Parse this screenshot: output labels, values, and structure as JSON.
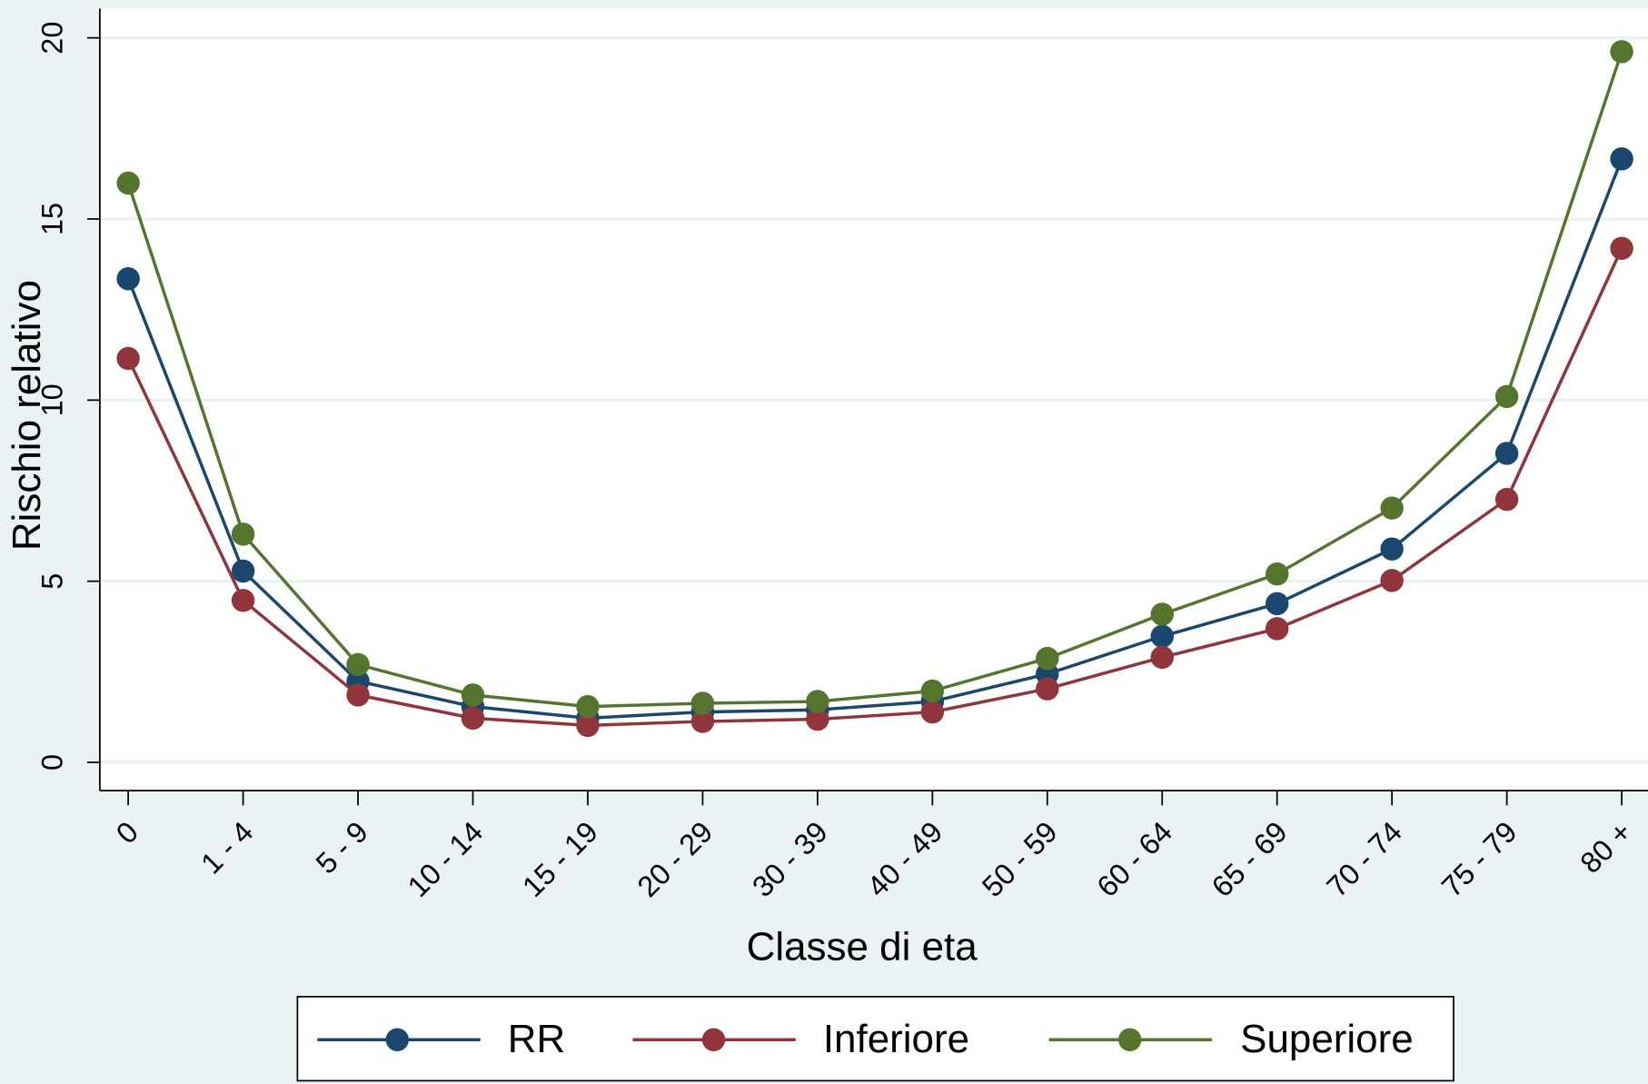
{
  "chart_data": {
    "type": "line",
    "x_label": "Classe di eta",
    "y_label": "Rischio relativo",
    "categories": [
      "0",
      "1 - 4",
      "5 - 9",
      "10 - 14",
      "15 - 19",
      "20 - 29",
      "30 - 39",
      "40 - 49",
      "50 - 59",
      "60 - 64",
      "65 - 69",
      "70 - 74",
      "75 - 79",
      "80 +"
    ],
    "series": [
      {
        "name": "RR",
        "color": "#1a476f",
        "values": [
          13.35,
          5.28,
          2.24,
          1.54,
          1.22,
          1.39,
          1.45,
          1.68,
          2.44,
          3.48,
          4.38,
          5.89,
          8.53,
          16.66
        ]
      },
      {
        "name": "Inferiore",
        "color": "#90353b",
        "values": [
          11.15,
          4.47,
          1.86,
          1.22,
          1.02,
          1.13,
          1.19,
          1.39,
          2.03,
          2.9,
          3.69,
          5.02,
          7.26,
          14.19
        ]
      },
      {
        "name": "Superiore",
        "color": "#55752f",
        "values": [
          15.99,
          6.3,
          2.7,
          1.86,
          1.54,
          1.63,
          1.68,
          1.97,
          2.87,
          4.09,
          5.2,
          7.02,
          10.1,
          19.62
        ]
      }
    ],
    "ylim": [
      -0.78,
      20.81
    ],
    "yticks": [
      0,
      5,
      10,
      15,
      20
    ],
    "grid": true,
    "legend": "bottom"
  }
}
